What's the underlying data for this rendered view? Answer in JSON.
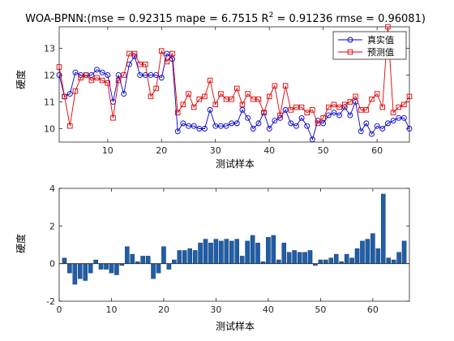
{
  "figure": {
    "background": "#ffffff"
  },
  "chart_data": [
    {
      "type": "line",
      "title_main": "WOA-BPNN:(mse = 0.92315 mape = 6.7515  R",
      "title_sup": "2",
      "title_tail": " = 0.91236 rmse = 0.96081)",
      "xlabel": "测试样本",
      "ylabel": "硬度",
      "xlim": [
        1,
        66
      ],
      "ylim": [
        9.5,
        13.8
      ],
      "xticks": [
        10,
        20,
        30,
        40,
        50,
        60
      ],
      "yticks": [
        10,
        11,
        12,
        13
      ],
      "xtick_labels": [
        "10",
        "20",
        "30",
        "40",
        "50",
        "60"
      ],
      "ytick_labels": [
        "10",
        "11",
        "12",
        "13"
      ],
      "grid": false,
      "legend_position": "top-right",
      "series": [
        {
          "name": "真实值",
          "color": "#0000cc",
          "marker": "circle",
          "values": [
            12.0,
            11.2,
            11.3,
            12.1,
            12.0,
            12.0,
            12.0,
            12.2,
            12.1,
            12.0,
            11.0,
            12.0,
            11.3,
            12.4,
            12.7,
            12.0,
            12.0,
            12.0,
            12.0,
            11.9,
            12.8,
            12.6,
            9.9,
            10.2,
            10.1,
            10.1,
            10.0,
            10.0,
            10.7,
            10.1,
            10.1,
            10.1,
            10.2,
            10.2,
            10.7,
            10.4,
            10.0,
            10.2,
            10.6,
            10.0,
            10.3,
            10.4,
            10.7,
            10.2,
            10.1,
            10.4,
            10.1,
            9.6,
            10.3,
            10.2,
            10.5,
            10.6,
            10.5,
            10.8,
            10.5,
            11.0,
            9.9,
            10.2,
            9.8,
            10.1,
            10.0,
            10.2,
            10.3,
            10.4,
            10.4,
            10.0
          ]
        },
        {
          "name": "预测值",
          "color": "#dd0000",
          "marker": "square",
          "values": [
            12.3,
            11.2,
            10.1,
            11.4,
            11.9,
            12.0,
            11.8,
            11.9,
            11.8,
            11.7,
            10.4,
            11.8,
            12.0,
            12.8,
            12.8,
            12.4,
            12.4,
            11.2,
            11.5,
            12.9,
            12.5,
            12.8,
            10.6,
            10.9,
            11.3,
            10.8,
            11.1,
            11.2,
            11.8,
            10.9,
            11.3,
            11.1,
            11.1,
            11.5,
            10.9,
            11.3,
            11.1,
            11.1,
            10.6,
            11.2,
            11.6,
            10.5,
            11.6,
            10.7,
            10.8,
            10.8,
            10.6,
            10.7,
            10.2,
            10.4,
            10.8,
            10.9,
            10.8,
            10.9,
            11.0,
            11.2,
            10.7,
            10.7,
            11.1,
            11.3,
            10.8,
            13.8,
            10.6,
            10.8,
            10.9,
            11.2
          ]
        }
      ]
    },
    {
      "type": "bar",
      "xlabel": "测试样本",
      "ylabel": "硬度",
      "xlim": [
        0,
        67
      ],
      "ylim": [
        -2,
        4
      ],
      "xticks": [
        0,
        10,
        20,
        30,
        40,
        50,
        60
      ],
      "yticks": [
        -2,
        0,
        2,
        4
      ],
      "xtick_labels": [
        "0",
        "10",
        "20",
        "30",
        "40",
        "50",
        "60"
      ],
      "ytick_labels": [
        "-2",
        "0",
        "2",
        "4"
      ],
      "grid": false,
      "color": "#1f5ea8",
      "x": [
        1,
        2,
        3,
        4,
        5,
        6,
        7,
        8,
        9,
        10,
        11,
        12,
        13,
        14,
        15,
        16,
        17,
        18,
        19,
        20,
        21,
        22,
        23,
        24,
        25,
        26,
        27,
        28,
        29,
        30,
        31,
        32,
        33,
        34,
        35,
        36,
        37,
        38,
        39,
        40,
        41,
        42,
        43,
        44,
        45,
        46,
        47,
        48,
        49,
        50,
        51,
        52,
        53,
        54,
        55,
        56,
        57,
        58,
        59,
        60,
        61,
        62,
        63,
        64,
        65,
        66
      ],
      "values": [
        0.3,
        -0.5,
        -1.1,
        -0.8,
        -0.9,
        -0.5,
        0.2,
        -0.3,
        -0.3,
        -0.5,
        -0.6,
        -0.1,
        0.9,
        0.5,
        0.1,
        0.4,
        0.4,
        -0.8,
        -0.5,
        0.9,
        -0.3,
        0.2,
        0.7,
        0.7,
        0.8,
        0.7,
        1.1,
        1.3,
        1.1,
        1.3,
        1.2,
        1.3,
        1.2,
        1.3,
        0.4,
        1.2,
        1.5,
        1.1,
        0.1,
        1.4,
        1.5,
        0.2,
        1.1,
        0.6,
        0.7,
        0.6,
        0.6,
        0.7,
        -0.1,
        0.2,
        0.2,
        0.3,
        0.5,
        0.1,
        0.5,
        0.3,
        0.8,
        1.2,
        1.3,
        1.6,
        0.8,
        3.7,
        0.3,
        0.2,
        0.6,
        1.2
      ]
    }
  ]
}
